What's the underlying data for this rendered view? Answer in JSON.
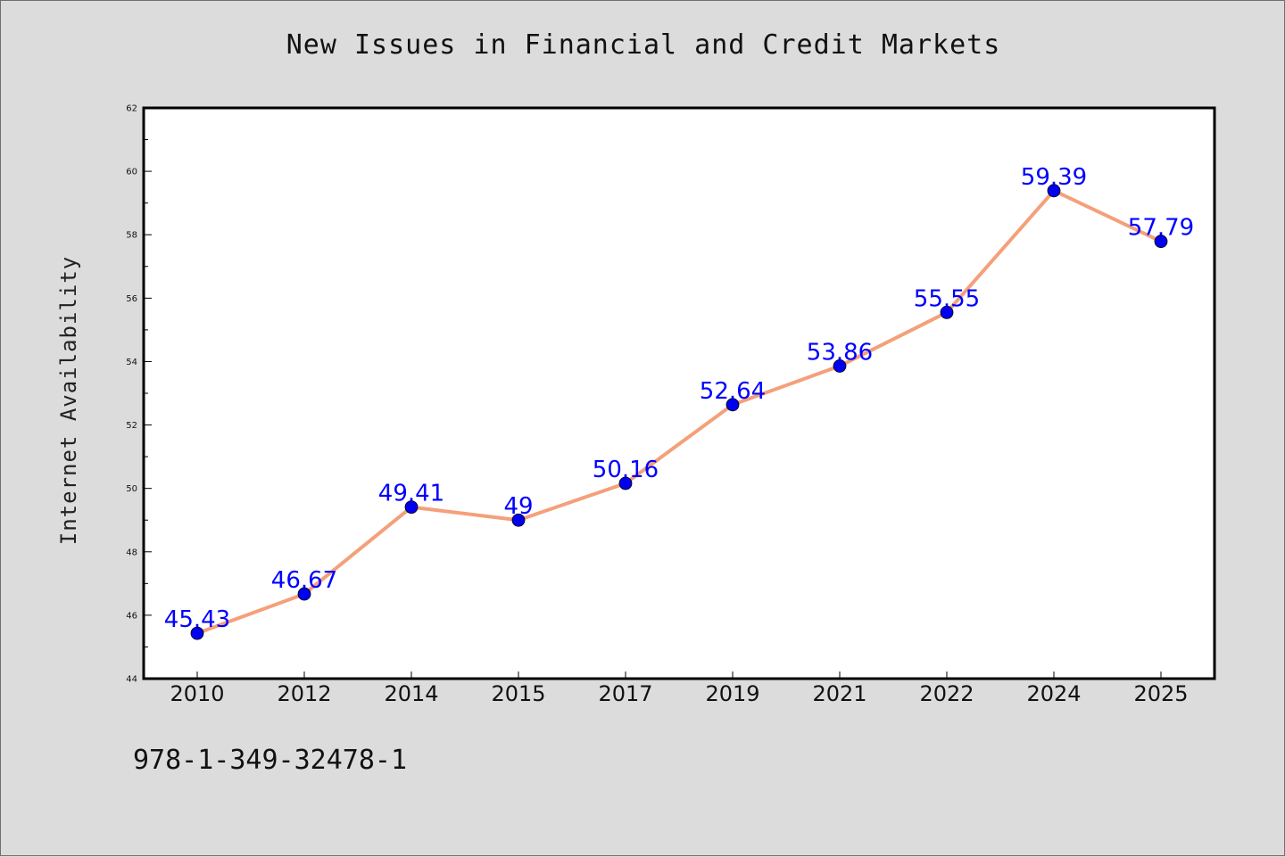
{
  "chart_data": {
    "type": "line",
    "title": "New Issues in Financial and Credit Markets",
    "ylabel": "Internet Availability",
    "xlabel": "",
    "categories": [
      "2010",
      "2012",
      "2014",
      "2015",
      "2017",
      "2019",
      "2021",
      "2022",
      "2024",
      "2025"
    ],
    "series": [
      {
        "values": [
          45.43,
          46.67,
          49.41,
          49,
          50.16,
          52.64,
          53.86,
          55.55,
          59.39,
          57.79
        ],
        "labels": [
          "45.43",
          "46.67",
          "49.41",
          "49",
          "50.16",
          "52.64",
          "53.86",
          "55.55",
          "59.39",
          "57.79"
        ]
      }
    ],
    "ylim": [
      44,
      62
    ],
    "yticks": [
      "44",
      "46",
      "48",
      "50",
      "52",
      "54",
      "56",
      "58",
      "60",
      "62"
    ],
    "grid": false,
    "legend": "none",
    "colors": {
      "line": "#f4a07a",
      "marker": "#0000ee",
      "data_label": "#0000ff",
      "plot_background": "#ffffff",
      "figure_background": "#dcdcdc"
    }
  },
  "footnote": "978-1-349-32478-1"
}
